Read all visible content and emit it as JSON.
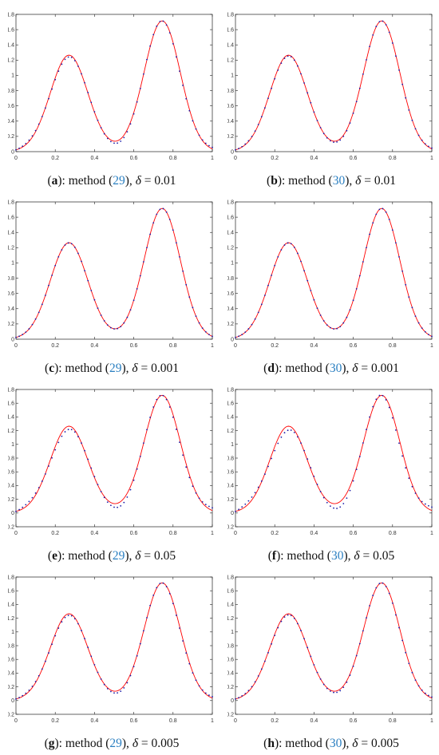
{
  "chart_data": [
    {
      "id": "a",
      "type": "line",
      "caption": {
        "letter": "a",
        "text": "method",
        "ref": "29",
        "delta": "0.01"
      },
      "xlim": [
        0,
        1
      ],
      "ylim": [
        0,
        1.8
      ],
      "xticks": [
        "0",
        "0.2",
        "0.4",
        "0.6",
        "0.8",
        "1"
      ],
      "yticks": [
        "0",
        "0.2",
        "0.4",
        "0.6",
        "0.8",
        "1",
        "1.2",
        "1.4",
        "1.6",
        "1.8"
      ],
      "series": [
        {
          "style": "solid",
          "color": "#ff0000",
          "dev": 0
        },
        {
          "style": "dotted",
          "color": "#1a1aa8",
          "dev": 0.02
        }
      ]
    },
    {
      "id": "b",
      "type": "line",
      "caption": {
        "letter": "b",
        "text": "method",
        "ref": "30",
        "delta": "0.01"
      },
      "xlim": [
        0,
        1
      ],
      "ylim": [
        0,
        1.8
      ],
      "xticks": [
        "0",
        "0.2",
        "0.4",
        "0.6",
        "0.8",
        "1"
      ],
      "yticks": [
        "0",
        "0.2",
        "0.4",
        "0.6",
        "0.8",
        "1",
        "1.2",
        "1.4",
        "1.6",
        "1.8"
      ],
      "series": [
        {
          "style": "solid",
          "color": "#ff0000",
          "dev": 0
        },
        {
          "style": "dotted",
          "color": "#1a1aa8",
          "dev": 0.01
        }
      ]
    },
    {
      "id": "c",
      "type": "line",
      "caption": {
        "letter": "c",
        "text": "method",
        "ref": "29",
        "delta": "0.001"
      },
      "xlim": [
        0,
        1
      ],
      "ylim": [
        0,
        1.8
      ],
      "xticks": [
        "0",
        "0.2",
        "0.4",
        "0.6",
        "0.8",
        "1"
      ],
      "yticks": [
        "0",
        "0.2",
        "0.4",
        "0.6",
        "0.8",
        "1",
        "1.2",
        "1.4",
        "1.6",
        "1.8"
      ],
      "series": [
        {
          "style": "solid",
          "color": "#ff0000",
          "dev": 0
        },
        {
          "style": "dotted",
          "color": "#1a1aa8",
          "dev": 0.002
        }
      ]
    },
    {
      "id": "d",
      "type": "line",
      "caption": {
        "letter": "d",
        "text": "method",
        "ref": "30",
        "delta": "0.001"
      },
      "xlim": [
        0,
        1
      ],
      "ylim": [
        0,
        1.8
      ],
      "xticks": [
        "0",
        "0.2",
        "0.4",
        "0.6",
        "0.8",
        "1"
      ],
      "yticks": [
        "0",
        "0.2",
        "0.4",
        "0.6",
        "0.8",
        "1",
        "1.2",
        "1.4",
        "1.6",
        "1.8"
      ],
      "series": [
        {
          "style": "solid",
          "color": "#ff0000",
          "dev": 0
        },
        {
          "style": "dotted",
          "color": "#1a1aa8",
          "dev": 0.002
        }
      ]
    },
    {
      "id": "e",
      "type": "line",
      "caption": {
        "letter": "e",
        "text": "method",
        "ref": "29",
        "delta": "0.05"
      },
      "xlim": [
        0,
        1
      ],
      "ylim": [
        -0.2,
        1.8
      ],
      "xticks": [
        "0",
        "0.2",
        "0.4",
        "0.6",
        "0.8",
        "1"
      ],
      "yticks": [
        "-0.2",
        "0",
        "0.2",
        "0.4",
        "0.6",
        "0.8",
        "1",
        "1.2",
        "1.4",
        "1.6",
        "1.8"
      ],
      "series": [
        {
          "style": "solid",
          "color": "#ff0000",
          "dev": 0
        },
        {
          "style": "dotted",
          "color": "#1a1aa8",
          "dev": 0.04
        }
      ]
    },
    {
      "id": "f",
      "type": "line",
      "caption": {
        "letter": "f",
        "text": "method",
        "ref": "30",
        "delta": "0.05"
      },
      "xlim": [
        0,
        1
      ],
      "ylim": [
        -0.2,
        1.8
      ],
      "xticks": [
        "0",
        "0.2",
        "0.4",
        "0.6",
        "0.8",
        "1"
      ],
      "yticks": [
        "-0.2",
        "0",
        "0.2",
        "0.4",
        "0.6",
        "0.8",
        "1",
        "1.2",
        "1.4",
        "1.6",
        "1.8"
      ],
      "series": [
        {
          "style": "solid",
          "color": "#ff0000",
          "dev": 0
        },
        {
          "style": "dotted",
          "color": "#1a1aa8",
          "dev": 0.05
        }
      ]
    },
    {
      "id": "g",
      "type": "line",
      "caption": {
        "letter": "g",
        "text": "method",
        "ref": "29",
        "delta": "0.005"
      },
      "xlim": [
        0,
        1
      ],
      "ylim": [
        -0.2,
        1.8
      ],
      "xticks": [
        "0",
        "0.2",
        "0.4",
        "0.6",
        "0.8",
        "1"
      ],
      "yticks": [
        "-0.2",
        "0",
        "0.2",
        "0.4",
        "0.6",
        "0.8",
        "1",
        "1.2",
        "1.4",
        "1.6",
        "1.8"
      ],
      "series": [
        {
          "style": "solid",
          "color": "#ff0000",
          "dev": 0
        },
        {
          "style": "dotted",
          "color": "#1a1aa8",
          "dev": 0.02
        }
      ]
    },
    {
      "id": "h",
      "type": "line",
      "caption": {
        "letter": "h",
        "text": "method",
        "ref": "30",
        "delta": "0.005"
      },
      "xlim": [
        0,
        1
      ],
      "ylim": [
        -0.2,
        1.8
      ],
      "xticks": [
        "0",
        "0.2",
        "0.4",
        "0.6",
        "0.8",
        "1"
      ],
      "yticks": [
        "-0.2",
        "0",
        "0.2",
        "0.4",
        "0.6",
        "0.8",
        "1",
        "1.2",
        "1.4",
        "1.6",
        "1.8"
      ],
      "series": [
        {
          "style": "solid",
          "color": "#ff0000",
          "dev": 0
        },
        {
          "style": "dotted",
          "color": "#1a1aa8",
          "dev": 0.015
        }
      ]
    }
  ]
}
